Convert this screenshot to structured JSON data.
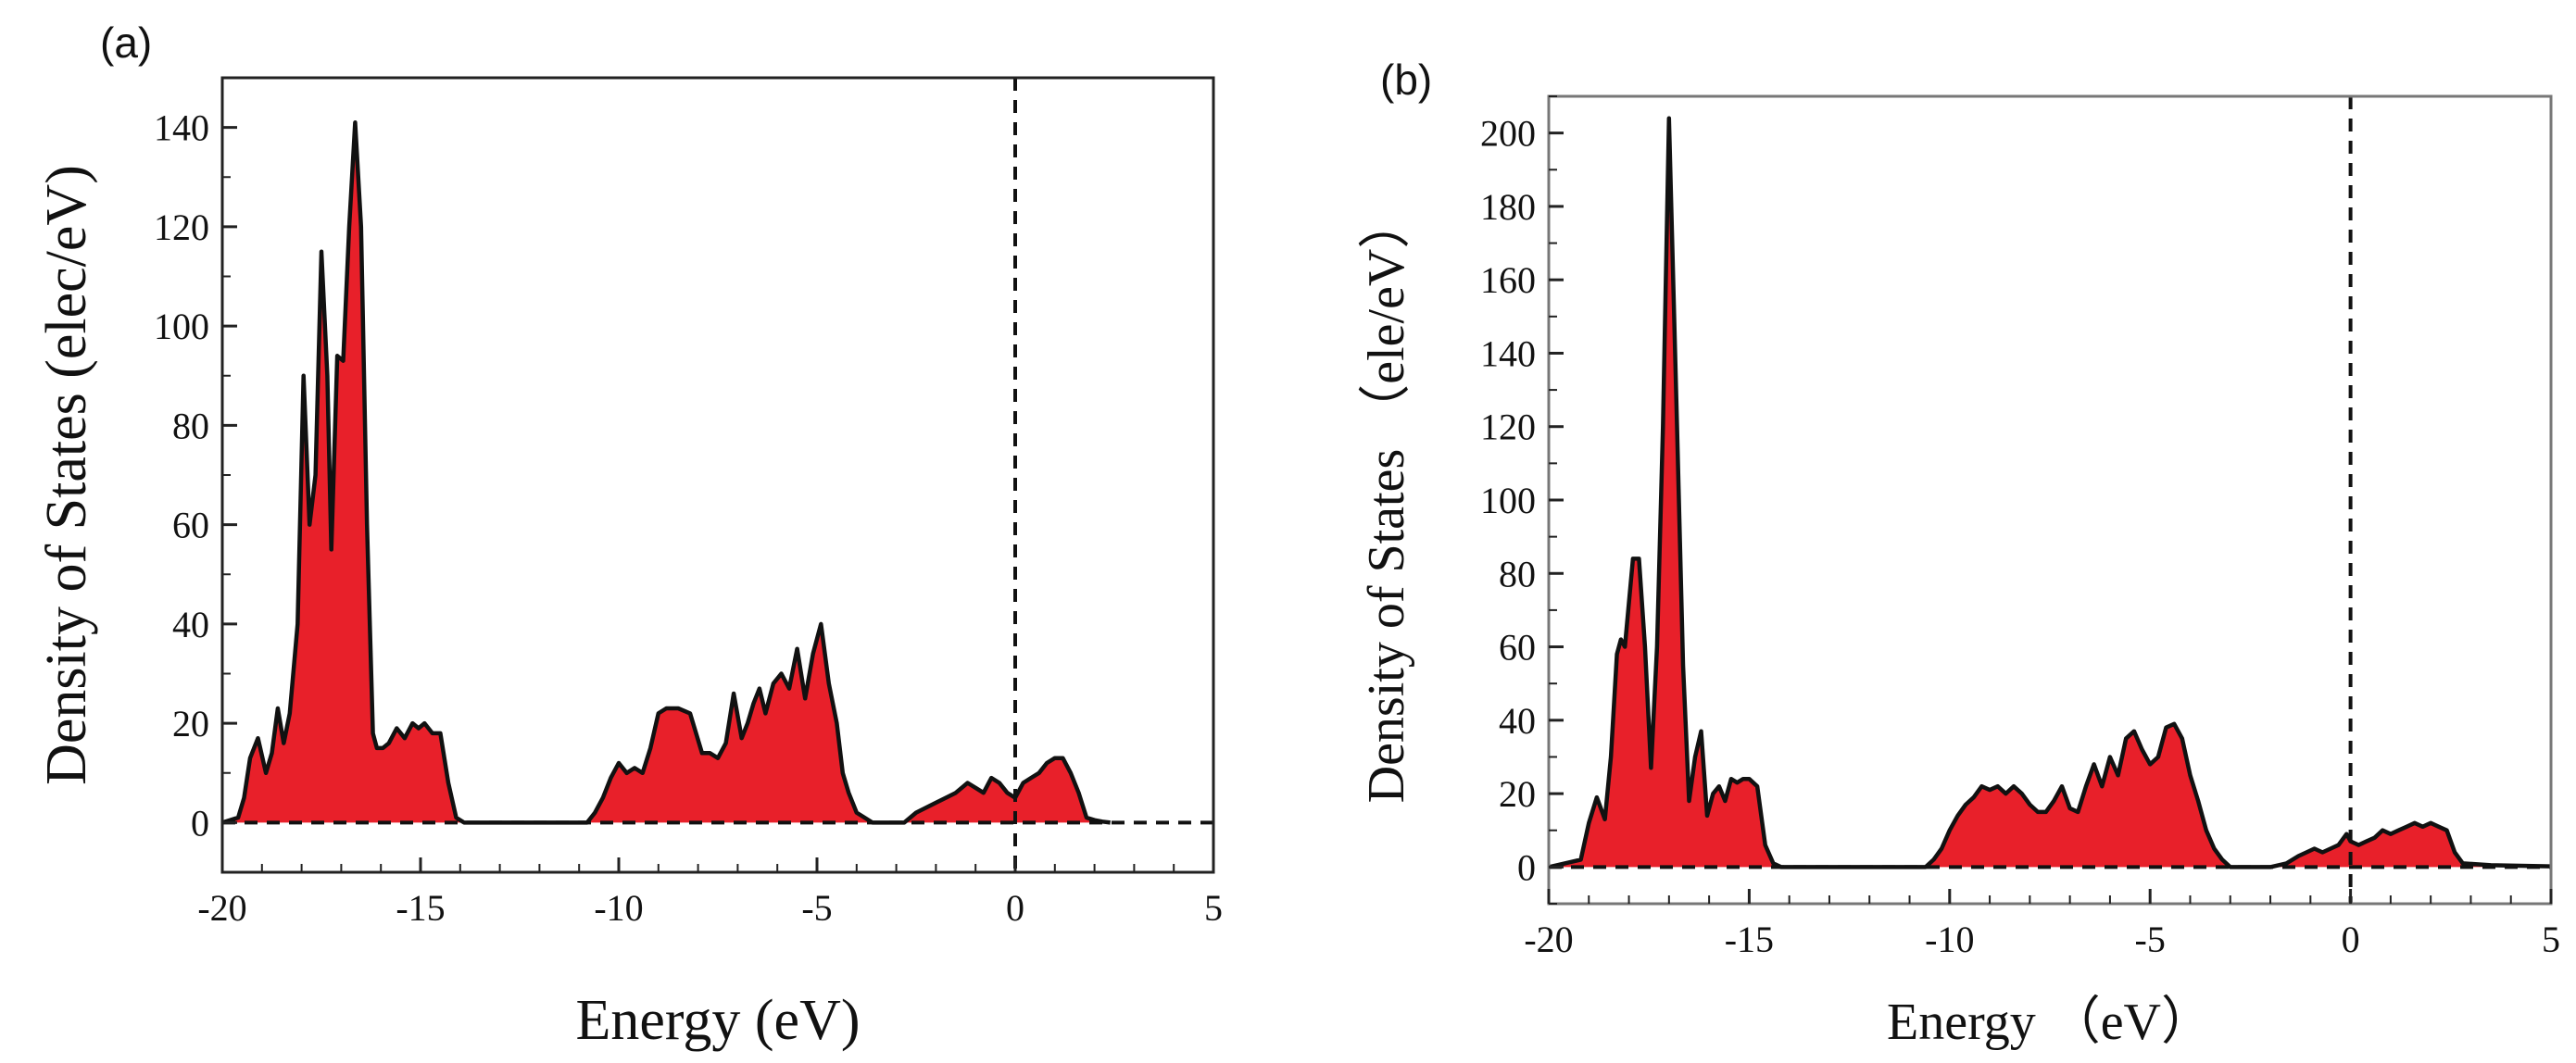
{
  "chart_data": [
    {
      "type": "area",
      "panel_label": "(a)",
      "title": "",
      "xlabel": "Energy (eV)",
      "ylabel": "Density of States (elec/eV)",
      "xlim": [
        -20,
        5
      ],
      "ylim": [
        -10,
        150
      ],
      "xticks": [
        -20,
        -15,
        -10,
        -5,
        0,
        5
      ],
      "yticks": [
        0,
        20,
        40,
        60,
        80,
        100,
        120,
        140
      ],
      "x_minor_step": 1,
      "y_minor_step": 10,
      "fill_color": "#e8202a",
      "fermi_level": 0,
      "zero_line": 0,
      "x": [
        -20,
        -19.6,
        -19.45,
        -19.3,
        -19.1,
        -18.9,
        -18.75,
        -18.6,
        -18.45,
        -18.3,
        -18.1,
        -17.95,
        -17.8,
        -17.65,
        -17.5,
        -17.35,
        -17.25,
        -17.1,
        -16.95,
        -16.8,
        -16.65,
        -16.5,
        -16.35,
        -16.2,
        -16.1,
        -15.95,
        -15.8,
        -15.6,
        -15.4,
        -15.2,
        -15.05,
        -14.9,
        -14.7,
        -14.5,
        -14.3,
        -14.1,
        -13.9,
        -13.5,
        -12,
        -10.8,
        -10.6,
        -10.4,
        -10.2,
        -10.0,
        -9.8,
        -9.6,
        -9.4,
        -9.2,
        -9.0,
        -8.8,
        -8.5,
        -8.2,
        -7.9,
        -7.7,
        -7.5,
        -7.3,
        -7.1,
        -6.9,
        -6.75,
        -6.6,
        -6.45,
        -6.3,
        -6.1,
        -5.9,
        -5.7,
        -5.5,
        -5.3,
        -5.1,
        -4.9,
        -4.7,
        -4.5,
        -4.35,
        -4.2,
        -4.0,
        -3.8,
        -3.6,
        -3.4,
        -3.2,
        -3.0,
        -2.8,
        -2.5,
        -2,
        -1.5,
        -1.2,
        -1.0,
        -0.8,
        -0.6,
        -0.4,
        -0.2,
        0.0,
        0.2,
        0.4,
        0.6,
        0.8,
        1.0,
        1.2,
        1.4,
        1.6,
        1.8,
        2.0,
        2.2,
        2.4,
        2.6,
        2.8,
        3.5,
        5.0
      ],
      "dos": [
        0,
        1,
        5,
        13,
        17,
        10,
        14,
        23,
        16,
        22,
        40,
        90,
        60,
        70,
        115,
        90,
        55,
        94,
        93,
        120,
        141,
        120,
        60,
        18,
        15,
        15,
        16,
        19,
        17,
        20,
        19,
        20,
        18,
        18,
        8,
        1,
        0,
        0,
        0,
        0,
        2,
        5,
        9,
        12,
        10,
        11,
        10,
        15,
        22,
        23,
        23,
        22,
        14,
        14,
        13,
        16,
        26,
        17,
        20,
        24,
        27,
        22,
        28,
        30,
        27,
        35,
        25,
        34,
        40,
        28,
        20,
        10,
        6,
        2,
        1,
        0,
        0,
        0,
        0,
        0,
        2,
        4,
        6,
        8,
        7,
        6,
        9,
        8,
        6,
        5,
        8,
        9,
        10,
        12,
        13,
        13,
        10,
        6,
        1,
        0.5,
        0.2,
        0
      ]
    },
    {
      "type": "area",
      "panel_label": "(b)",
      "title": "",
      "xlabel": "Energy （eV）",
      "ylabel": "Density of States （ele/eV）",
      "xlim": [
        -20,
        5
      ],
      "ylim": [
        -10,
        210
      ],
      "xticks": [
        -20,
        -15,
        -10,
        -5,
        0,
        5
      ],
      "yticks": [
        0,
        20,
        40,
        60,
        80,
        100,
        120,
        140,
        160,
        180,
        200
      ],
      "x_minor_step": 1,
      "y_minor_step": 10,
      "fill_color": "#e8202a",
      "fermi_level": 0,
      "zero_line": 0,
      "x": [
        -20,
        -19.2,
        -19.0,
        -18.8,
        -18.6,
        -18.45,
        -18.3,
        -18.2,
        -18.1,
        -17.9,
        -17.75,
        -17.6,
        -17.45,
        -17.3,
        -17.15,
        -17.0,
        -16.8,
        -16.65,
        -16.5,
        -16.35,
        -16.2,
        -16.05,
        -15.9,
        -15.75,
        -15.6,
        -15.45,
        -15.3,
        -15.15,
        -15.0,
        -14.8,
        -14.6,
        -14.4,
        -14.2,
        -13.5,
        -12,
        -10.6,
        -10.4,
        -10.2,
        -10.0,
        -9.8,
        -9.6,
        -9.4,
        -9.2,
        -9.0,
        -8.8,
        -8.6,
        -8.4,
        -8.2,
        -8.0,
        -7.8,
        -7.6,
        -7.4,
        -7.2,
        -7.0,
        -6.8,
        -6.6,
        -6.4,
        -6.2,
        -6.0,
        -5.8,
        -5.6,
        -5.4,
        -5.2,
        -5.0,
        -4.8,
        -4.6,
        -4.4,
        -4.2,
        -4.0,
        -3.8,
        -3.6,
        -3.4,
        -3.2,
        -3.0,
        -2.5,
        -2,
        -1.6,
        -1.3,
        -1.1,
        -0.9,
        -0.7,
        -0.5,
        -0.3,
        -0.1,
        0.0,
        0.2,
        0.4,
        0.6,
        0.8,
        1.0,
        1.2,
        1.4,
        1.6,
        1.8,
        2.0,
        2.2,
        2.4,
        2.6,
        2.8,
        3.5,
        5.0
      ],
      "dos": [
        0,
        2,
        12,
        19,
        13,
        30,
        58,
        62,
        60,
        84,
        84,
        60,
        27,
        60,
        120,
        204,
        120,
        55,
        18,
        30,
        37,
        14,
        20,
        22,
        18,
        24,
        23,
        24,
        24,
        22,
        6,
        1,
        0,
        0,
        0,
        0,
        2,
        5,
        10,
        14,
        17,
        19,
        22,
        21,
        22,
        20,
        22,
        20,
        17,
        15,
        15,
        18,
        22,
        16,
        15,
        22,
        28,
        22,
        30,
        25,
        35,
        37,
        32,
        28,
        30,
        38,
        39,
        35,
        25,
        18,
        10,
        5,
        2,
        0,
        0,
        0,
        1,
        3,
        4,
        5,
        4,
        5,
        6,
        9,
        7,
        6,
        7,
        8,
        10,
        9,
        10,
        11,
        12,
        11,
        12,
        11,
        10,
        4,
        1,
        0.5,
        0.2,
        0
      ]
    }
  ]
}
